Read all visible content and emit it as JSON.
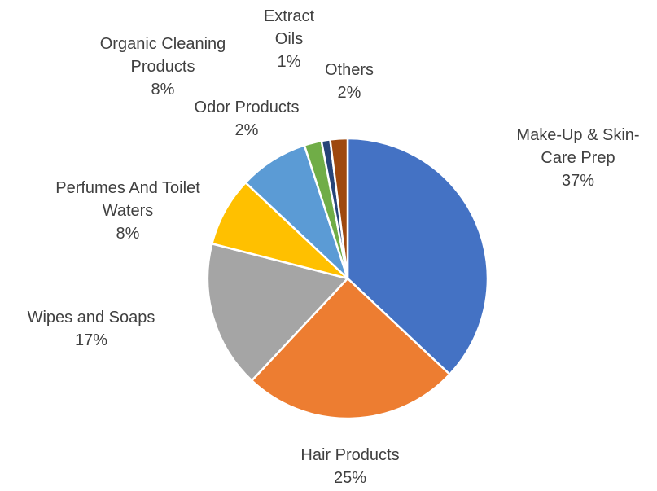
{
  "chart_data": {
    "type": "pie",
    "title": "",
    "start_angle_deg": 0,
    "direction": "clockwise",
    "slices": [
      {
        "label_lines": [
          "Make-Up & Skin-",
          "Care Prep"
        ],
        "pct_label": "37%",
        "value": 37,
        "color": "#4472C4"
      },
      {
        "label_lines": [
          "Hair Products"
        ],
        "pct_label": "25%",
        "value": 25,
        "color": "#ED7D31"
      },
      {
        "label_lines": [
          "Wipes and Soaps"
        ],
        "pct_label": "17%",
        "value": 17,
        "color": "#A5A5A5"
      },
      {
        "label_lines": [
          "Perfumes And Toilet",
          "Waters"
        ],
        "pct_label": "8%",
        "value": 8,
        "color": "#FFC000"
      },
      {
        "label_lines": [
          "Organic Cleaning",
          "Products"
        ],
        "pct_label": "8%",
        "value": 8,
        "color": "#5B9BD5"
      },
      {
        "label_lines": [
          "Odor Products"
        ],
        "pct_label": "2%",
        "value": 2,
        "color": "#70AD47"
      },
      {
        "label_lines": [
          "Extract",
          "Oils"
        ],
        "pct_label": "1%",
        "value": 1,
        "color": "#264478"
      },
      {
        "label_lines": [
          "Others"
        ],
        "pct_label": "2%",
        "value": 2,
        "color": "#9E480E"
      }
    ]
  }
}
